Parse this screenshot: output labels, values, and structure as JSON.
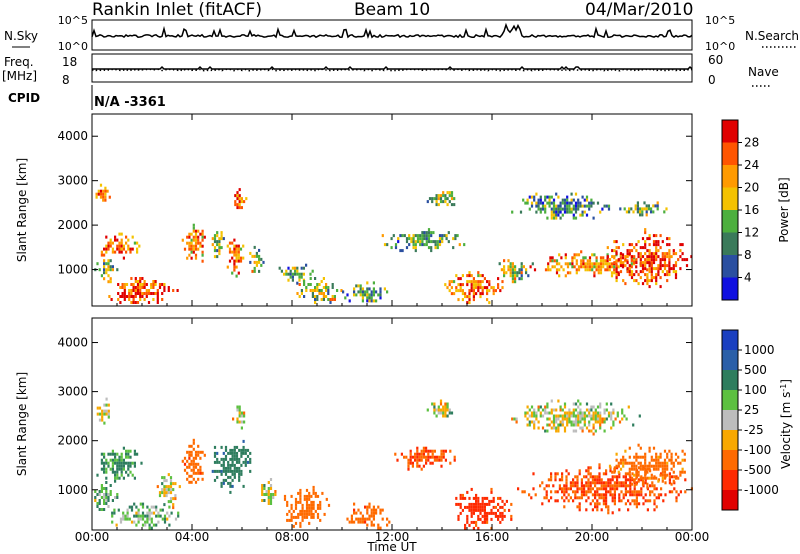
{
  "header": {
    "station": "Rankin Inlet (fitACF)",
    "beam": "Beam 10",
    "date": "04/Mar/2010"
  },
  "aux": {
    "nsky_label": "N.Sky",
    "nsearch_label": "N.Search",
    "noise_ticks": [
      "10^5",
      "10^0"
    ],
    "freq_label_1": "Freq.",
    "freq_label_2": "[MHz]",
    "freq_ticks": [
      "18",
      "8"
    ],
    "nave_label": "Nave",
    "nave_ticks": [
      "60",
      "0"
    ],
    "cpid_label": "CPID",
    "cpid_value": "N/A  -3361"
  },
  "colorbars": {
    "power": {
      "label": "Power [dB]",
      "ticks": [
        "28",
        "24",
        "20",
        "16",
        "12",
        "8",
        "4"
      ],
      "colors": [
        "#e00000",
        "#ff5500",
        "#ff9a00",
        "#f4c200",
        "#4caf3e",
        "#3a7a5a",
        "#2a4fa0",
        "#1010e0"
      ]
    },
    "velocity": {
      "label": "Velocity [m s",
      "label_sup": "-1",
      "label_end": "]",
      "ticks": [
        "1000",
        "500",
        "100",
        "25",
        "-25",
        "-100",
        "-500",
        "-1000"
      ],
      "colors": [
        "#1a3fc0",
        "#2a5fa8",
        "#2e7d5e",
        "#5cc040",
        "#bdbdbd",
        "#f8a800",
        "#ff6a00",
        "#ff2a00",
        "#e00000"
      ]
    }
  },
  "chart_data": {
    "type": "heatmap",
    "x_axis": {
      "label": "Time UT",
      "ticks": [
        "00:00",
        "04:00",
        "08:00",
        "12:00",
        "16:00",
        "20:00",
        "00:00"
      ],
      "range_hours": [
        0,
        24
      ]
    },
    "y_axis": {
      "label": "Slant Range [km]",
      "ticks": [
        1000,
        2000,
        3000,
        4000
      ],
      "range_km": [
        180,
        4500
      ]
    },
    "power_blobs": [
      {
        "t0": 0.05,
        "t1": 0.7,
        "r0": 2400,
        "r1": 3000,
        "v": 22
      },
      {
        "t0": 0.0,
        "t1": 2.0,
        "r0": 1200,
        "r1": 1900,
        "v": 24
      },
      {
        "t0": 0.0,
        "t1": 1.0,
        "r0": 700,
        "r1": 1300,
        "v": 14
      },
      {
        "t0": 0.3,
        "t1": 3.5,
        "r0": 180,
        "r1": 900,
        "v": 27
      },
      {
        "t0": 3.5,
        "t1": 4.6,
        "r0": 1100,
        "r1": 2100,
        "v": 22
      },
      {
        "t0": 4.7,
        "t1": 5.3,
        "r0": 1200,
        "r1": 2000,
        "v": 14
      },
      {
        "t0": 5.3,
        "t1": 6.1,
        "r0": 800,
        "r1": 1900,
        "v": 24
      },
      {
        "t0": 5.6,
        "t1": 6.2,
        "r0": 2200,
        "r1": 2900,
        "v": 24
      },
      {
        "t0": 6.2,
        "t1": 6.9,
        "r0": 900,
        "r1": 1600,
        "v": 15
      },
      {
        "t0": 7.2,
        "t1": 9.0,
        "r0": 700,
        "r1": 1200,
        "v": 12
      },
      {
        "t0": 8.0,
        "t1": 10.0,
        "r0": 180,
        "r1": 900,
        "v": 15
      },
      {
        "t0": 10.0,
        "t1": 12.0,
        "r0": 180,
        "r1": 800,
        "v": 10
      },
      {
        "t0": 11.5,
        "t1": 15.0,
        "r0": 1400,
        "r1": 2000,
        "v": 12
      },
      {
        "t0": 13.3,
        "t1": 14.7,
        "r0": 2400,
        "r1": 2900,
        "v": 15
      },
      {
        "t0": 14.0,
        "t1": 16.5,
        "r0": 180,
        "r1": 1100,
        "v": 24
      },
      {
        "t0": 16.0,
        "t1": 17.5,
        "r0": 700,
        "r1": 1300,
        "v": 16
      },
      {
        "t0": 16.5,
        "t1": 21.0,
        "r0": 2100,
        "r1": 2800,
        "v": 10
      },
      {
        "t0": 17.5,
        "t1": 22.5,
        "r0": 800,
        "r1": 1500,
        "v": 22
      },
      {
        "t0": 20.5,
        "t1": 24.0,
        "r0": 500,
        "r1": 2000,
        "v": 27
      },
      {
        "t0": 21.0,
        "t1": 23.0,
        "r0": 2200,
        "r1": 2600,
        "v": 14
      }
    ],
    "velocity_blobs": [
      {
        "t0": 0.1,
        "t1": 0.8,
        "r0": 2300,
        "r1": 3000,
        "v": 0
      },
      {
        "t0": 0.0,
        "t1": 2.0,
        "r0": 1100,
        "r1": 2000,
        "v": 150
      },
      {
        "t0": 0.0,
        "t1": 1.0,
        "r0": 500,
        "r1": 1300,
        "v": 80
      },
      {
        "t0": 0.5,
        "t1": 3.5,
        "r0": 180,
        "r1": 800,
        "v": 60
      },
      {
        "t0": 2.5,
        "t1": 3.5,
        "r0": 600,
        "r1": 1400,
        "v": 0
      },
      {
        "t0": 3.5,
        "t1": 4.6,
        "r0": 1000,
        "r1": 2100,
        "v": -400
      },
      {
        "t0": 4.7,
        "t1": 6.5,
        "r0": 900,
        "r1": 2200,
        "v": 400
      },
      {
        "t0": 5.6,
        "t1": 6.2,
        "r0": 2200,
        "r1": 2900,
        "v": 0
      },
      {
        "t0": 6.5,
        "t1": 7.5,
        "r0": 700,
        "r1": 1300,
        "v": 0
      },
      {
        "t0": 7.5,
        "t1": 9.5,
        "r0": 180,
        "r1": 1200,
        "v": -300
      },
      {
        "t0": 10.0,
        "t1": 12.0,
        "r0": 180,
        "r1": 800,
        "v": -400
      },
      {
        "t0": 12.0,
        "t1": 14.5,
        "r0": 1400,
        "r1": 2000,
        "v": -500
      },
      {
        "t0": 13.3,
        "t1": 14.5,
        "r0": 2400,
        "r1": 2900,
        "v": 0
      },
      {
        "t0": 14.0,
        "t1": 17.0,
        "r0": 180,
        "r1": 1100,
        "v": -600
      },
      {
        "t0": 16.5,
        "t1": 22.0,
        "r0": 2100,
        "r1": 2900,
        "v": 0
      },
      {
        "t0": 17.0,
        "t1": 24.0,
        "r0": 500,
        "r1": 1600,
        "v": -500
      },
      {
        "t0": 20.5,
        "t1": 24.0,
        "r0": 1000,
        "r1": 2000,
        "v": -200
      }
    ]
  }
}
